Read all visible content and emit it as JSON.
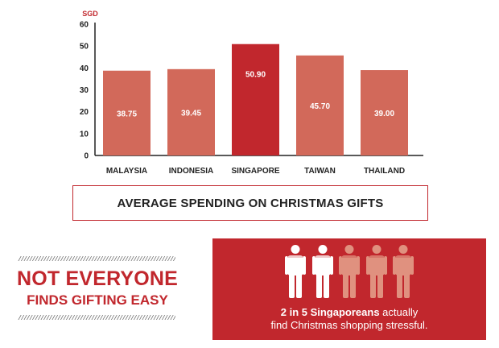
{
  "chart_data": {
    "type": "bar",
    "title": "AVERAGE SPENDING ON CHRISTMAS GIFTS",
    "ylabel": "SGD",
    "xlabel": "",
    "categories": [
      "MALAYSIA",
      "INDONESIA",
      "SINGAPORE",
      "TAIWAN",
      "THAILAND"
    ],
    "values": [
      38.75,
      39.45,
      50.9,
      45.7,
      39.0
    ],
    "data_labels": [
      "38.75",
      "39.45",
      "50.90",
      "45.70",
      "39.00"
    ],
    "highlight_index": 2,
    "ylim": [
      0,
      60
    ],
    "yticks": [
      0,
      10,
      20,
      30,
      40,
      50,
      60
    ],
    "grid": false,
    "colors": {
      "bar": "#d2695a",
      "highlight": "#c1272d",
      "axis": "#222222"
    }
  },
  "headline": {
    "slashes": "////////////////////////////////////////////////////////////////////////",
    "line1": "NOT EVERYONE",
    "line2": "FINDS GIFTING EASY"
  },
  "stat": {
    "bold": "2 in 5 Singaporeans",
    "rest1": " actually",
    "line2": "find Christmas shopping stressful.",
    "people_total": 5,
    "people_highlighted": 2,
    "colors": {
      "panel": "#c1272d",
      "highlighted": "#ffffff",
      "other": "#e0917f"
    },
    "icon": "person-icon"
  }
}
